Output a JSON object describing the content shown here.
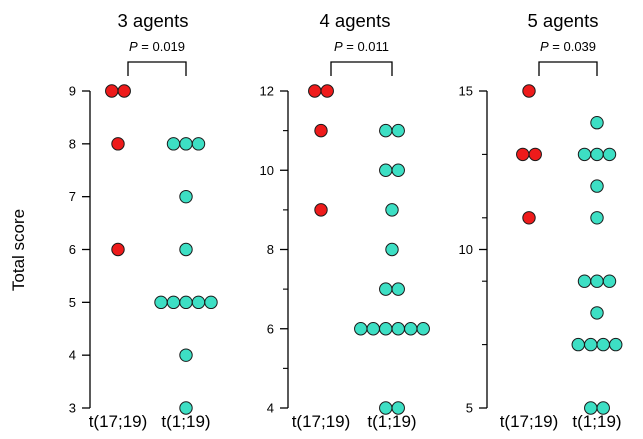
{
  "ylabel": "Total score",
  "colors": {
    "t17": "#ee1b1b",
    "t1": "#3ddfc4",
    "stroke": "#1a1a1a"
  },
  "chart_data": [
    {
      "type": "scatter",
      "title": "3 agents",
      "pvalue": "0.019",
      "categories": [
        "t(17;19)",
        "t(1;19)"
      ],
      "ylim": [
        3,
        9
      ],
      "yticks": [
        3,
        4,
        5,
        6,
        7,
        8,
        9
      ],
      "series": [
        {
          "category": "t(17;19)",
          "values": [
            9,
            9,
            8,
            6
          ]
        },
        {
          "category": "t(1;19)",
          "values": [
            8,
            8,
            8,
            7,
            6,
            5,
            5,
            5,
            5,
            5,
            4,
            3
          ]
        }
      ]
    },
    {
      "type": "scatter",
      "title": "4 agents",
      "pvalue": "0.011",
      "categories": [
        "t(17;19)",
        "t(1;19)"
      ],
      "ylim": [
        4,
        12
      ],
      "yticks": [
        4,
        6,
        8,
        10,
        12
      ],
      "series": [
        {
          "category": "t(17;19)",
          "values": [
            12,
            12,
            11,
            9
          ]
        },
        {
          "category": "t(1;19)",
          "values": [
            11,
            11,
            10,
            10,
            9,
            8,
            7,
            7,
            6,
            6,
            6,
            6,
            6,
            6,
            4,
            4
          ]
        }
      ]
    },
    {
      "type": "scatter",
      "title": "5 agents",
      "pvalue": "0.039",
      "categories": [
        "t(17;19)",
        "t(1;19)"
      ],
      "ylim": [
        5,
        15
      ],
      "yticks": [
        5,
        10,
        15
      ],
      "series": [
        {
          "category": "t(17;19)",
          "values": [
            15,
            13,
            13,
            11
          ]
        },
        {
          "category": "t(1;19)",
          "values": [
            14,
            13,
            13,
            13,
            12,
            11,
            9,
            9,
            9,
            8,
            7,
            7,
            7,
            7,
            5,
            5
          ]
        }
      ]
    }
  ]
}
